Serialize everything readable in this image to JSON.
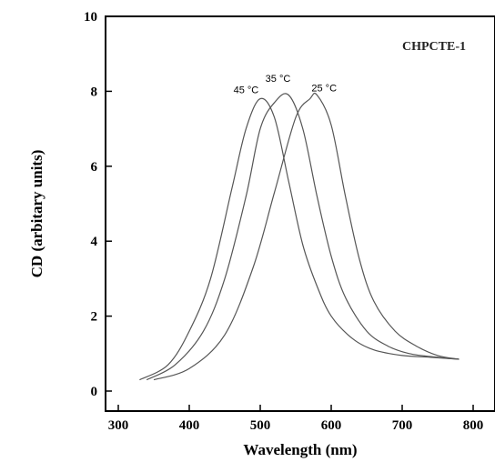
{
  "chart_data": {
    "type": "line",
    "xlabel": "Wavelength (nm)",
    "ylabel": "CD (arbitary units)",
    "xlim": [
      280,
      820
    ],
    "ylim": [
      0,
      10
    ],
    "xticks": [
      300,
      400,
      500,
      600,
      700,
      800
    ],
    "yticks": [
      0,
      2,
      4,
      6,
      8,
      10
    ],
    "annotation": "CHPCTE-1",
    "grid": false,
    "series": [
      {
        "name": "45 °C",
        "x": [
          330,
          370,
          400,
          430,
          460,
          480,
          500,
          520,
          540,
          560,
          580,
          600,
          630,
          660,
          700,
          740,
          780
        ],
        "y": [
          0.3,
          0.7,
          1.6,
          3.0,
          5.4,
          7.0,
          7.8,
          7.3,
          5.6,
          3.9,
          2.8,
          2.0,
          1.4,
          1.1,
          0.95,
          0.9,
          0.85
        ]
      },
      {
        "name": "35 °C",
        "x": [
          340,
          380,
          420,
          450,
          480,
          500,
          520,
          540,
          560,
          580,
          600,
          620,
          650,
          680,
          710,
          750,
          780
        ],
        "y": [
          0.3,
          0.7,
          1.6,
          3.0,
          5.2,
          7.0,
          7.7,
          7.9,
          7.0,
          5.2,
          3.6,
          2.5,
          1.6,
          1.2,
          1.0,
          0.9,
          0.85
        ]
      },
      {
        "name": "25 °C",
        "x": [
          350,
          400,
          450,
          490,
          520,
          550,
          570,
          580,
          600,
          620,
          640,
          660,
          690,
          720,
          750,
          780
        ],
        "y": [
          0.3,
          0.6,
          1.5,
          3.3,
          5.3,
          7.3,
          7.8,
          7.9,
          7.1,
          5.2,
          3.5,
          2.4,
          1.6,
          1.2,
          0.95,
          0.85
        ]
      }
    ],
    "curve_labels": [
      {
        "text": "45 °C",
        "x": 480,
        "y": 7.95
      },
      {
        "text": "35 °C",
        "x": 525,
        "y": 8.25
      },
      {
        "text": "25 °C",
        "x": 590,
        "y": 8.0
      }
    ]
  }
}
